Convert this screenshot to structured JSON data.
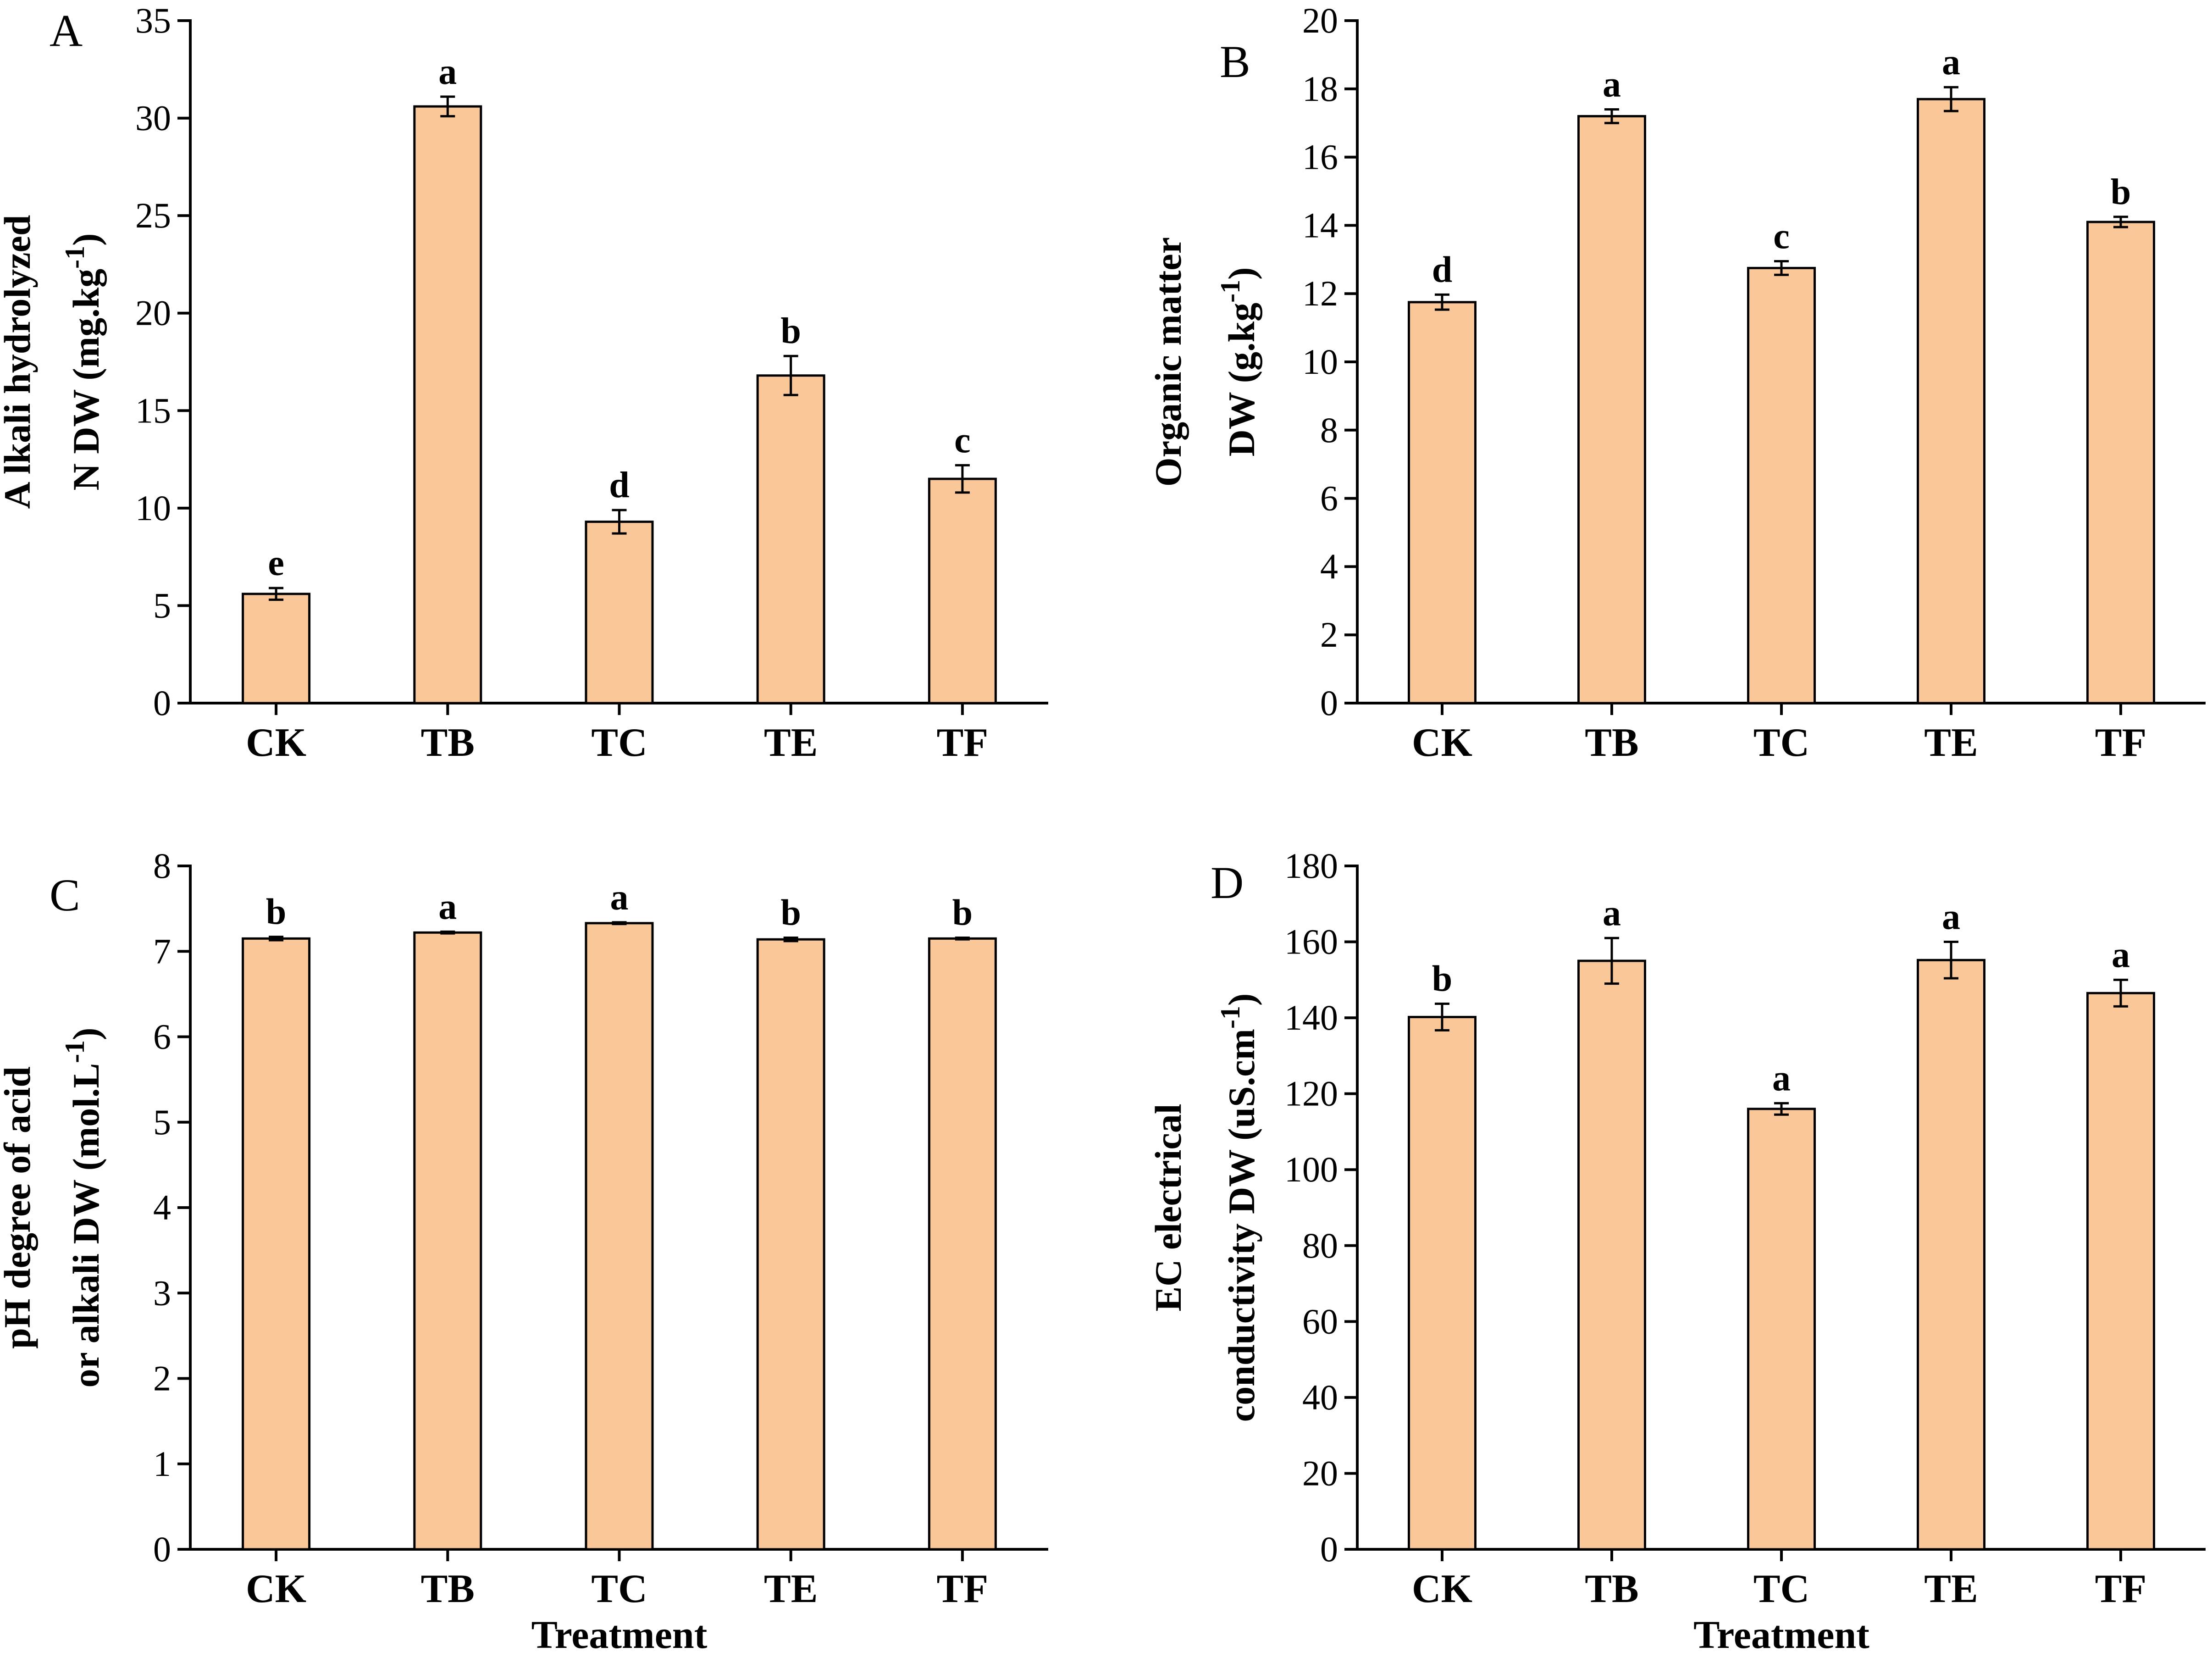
{
  "chart_data": [
    {
      "type": "bar",
      "panel": "A",
      "categories": [
        "CK",
        "TB",
        "TC",
        "TE",
        "TF"
      ],
      "values": [
        5.6,
        30.6,
        9.3,
        16.8,
        11.5
      ],
      "errors": [
        0.3,
        0.5,
        0.6,
        1.0,
        0.7
      ],
      "significance": [
        "e",
        "a",
        "d",
        "b",
        "c"
      ],
      "ylabel_line1": "A lkali hydrolyzed",
      "ylabel_line2_prefix": "N DW (mg.kg",
      "ylabel_sup": "-1",
      "ylabel_suffix": ")",
      "xlabel": "",
      "ylim": [
        0,
        35
      ],
      "yticks": [
        0,
        5,
        10,
        15,
        20,
        25,
        30,
        35
      ]
    },
    {
      "type": "bar",
      "panel": "B",
      "categories": [
        "CK",
        "TB",
        "TC",
        "TE",
        "TF"
      ],
      "values": [
        11.75,
        17.2,
        12.75,
        17.7,
        14.1
      ],
      "errors": [
        0.22,
        0.2,
        0.2,
        0.35,
        0.15
      ],
      "significance": [
        "d",
        "a",
        "c",
        "a",
        "b"
      ],
      "ylabel_line1": "Organic matter",
      "ylabel_line2_prefix": "DW (g.kg",
      "ylabel_sup": "-1",
      "ylabel_suffix": ")",
      "xlabel": "",
      "ylim": [
        0,
        20
      ],
      "yticks": [
        0,
        2,
        4,
        6,
        8,
        10,
        12,
        14,
        16,
        18,
        20
      ]
    },
    {
      "type": "bar",
      "panel": "C",
      "categories": [
        "CK",
        "TB",
        "TC",
        "TE",
        "TF"
      ],
      "values": [
        7.15,
        7.22,
        7.33,
        7.14,
        7.15
      ],
      "errors": [
        0.02,
        0.01,
        0.01,
        0.02,
        0.01
      ],
      "significance": [
        "b",
        "a",
        "a",
        "b",
        "b"
      ],
      "ylabel_line1": "pH degree of acid",
      "ylabel_line2_prefix": "or alkali DW (mol.L",
      "ylabel_sup": "-1",
      "ylabel_suffix": ")",
      "xlabel": "Treatment",
      "ylim": [
        0,
        8
      ],
      "yticks": [
        0,
        1,
        2,
        3,
        4,
        5,
        6,
        7,
        8
      ]
    },
    {
      "type": "bar",
      "panel": "D",
      "categories": [
        "CK",
        "TB",
        "TC",
        "TE",
        "TF"
      ],
      "values": [
        140.2,
        155.0,
        116.0,
        155.2,
        146.5
      ],
      "errors": [
        3.5,
        6.0,
        1.5,
        4.8,
        3.5
      ],
      "significance": [
        "b",
        "a",
        "a",
        "a",
        "a"
      ],
      "ylabel_line1": "EC electrical",
      "ylabel_line2_prefix": "conductivity DW (uS.cm",
      "ylabel_sup": "-1",
      "ylabel_suffix": ")",
      "xlabel": "Treatment",
      "ylim": [
        0,
        180
      ],
      "yticks": [
        0,
        20,
        40,
        60,
        80,
        100,
        120,
        140,
        160,
        180
      ]
    }
  ],
  "colors": {
    "bar_fill": "#FAC898",
    "stroke": "#000000"
  }
}
